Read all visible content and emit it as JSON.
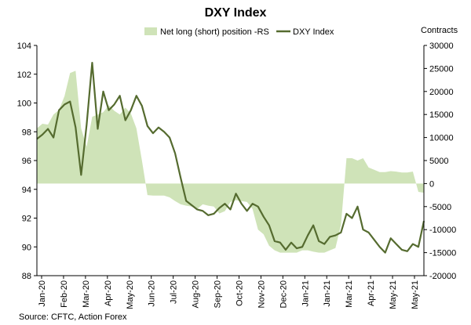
{
  "chart_data": {
    "type": "line",
    "title": "DXY Index",
    "source": "Source: CFTC, Action Forex",
    "y2_label": "Contracts",
    "ylim": [
      88,
      104
    ],
    "y_ticks": [
      88,
      90,
      92,
      94,
      96,
      98,
      100,
      102,
      104
    ],
    "y2lim": [
      -20000,
      30000
    ],
    "y2_ticks": [
      -20000,
      -15000,
      -10000,
      -5000,
      0,
      5000,
      10000,
      15000,
      20000,
      25000,
      30000
    ],
    "x_tick_labels": [
      "Jan-20",
      "Feb-20",
      "Mar-20",
      "Apr-20",
      "May-20",
      "Jun-20",
      "Jul-20",
      "Aug-20",
      "Sep-20",
      "Oct-20",
      "Nov-20",
      "Dec-20",
      "Jan-21",
      "Jan-21",
      "Mar-21",
      "Apr-21",
      "May-21",
      "May-21"
    ],
    "x_index_max": 70,
    "legend_position": "top-center",
    "series": [
      {
        "name": "Net long (short) position -RS",
        "axis": "right",
        "style": "area",
        "color": "#cfe3b8",
        "x": [
          0,
          1,
          2,
          3,
          4,
          5,
          6,
          7,
          8,
          9,
          10,
          11,
          12,
          13,
          14,
          15,
          16,
          17,
          18,
          19,
          20,
          21,
          22,
          23,
          24,
          25,
          26,
          27,
          28,
          29,
          30,
          31,
          32,
          33,
          34,
          35,
          36,
          37,
          38,
          39,
          40,
          41,
          42,
          43,
          44,
          45,
          46,
          47,
          48,
          49,
          50,
          51,
          52,
          53,
          54,
          55,
          56,
          57,
          58,
          59,
          60,
          61,
          62,
          63,
          64,
          65,
          66,
          67,
          68,
          69,
          70
        ],
        "values": [
          12000,
          13000,
          12800,
          15000,
          16000,
          19000,
          24000,
          24500,
          12000,
          8000,
          14500,
          15000,
          15500,
          17000,
          15800,
          15000,
          16500,
          15200,
          12000,
          5000,
          -2500,
          -2600,
          -2600,
          -2600,
          -3000,
          -3800,
          -4500,
          -4800,
          -5000,
          -5500,
          -4500,
          -4800,
          -5000,
          -6500,
          -6000,
          -4000,
          -3600,
          -3800,
          -4000,
          -5500,
          -10000,
          -11000,
          -13500,
          -14500,
          -15000,
          -15000,
          -15000,
          -15000,
          -14500,
          -14500,
          -14800,
          -15000,
          -15000,
          -14500,
          -14000,
          -9000,
          5500,
          5500,
          5000,
          5500,
          3500,
          3000,
          2500,
          2500,
          2700,
          2600,
          2400,
          2400,
          2600,
          -1800,
          -2000
        ]
      },
      {
        "name": "DXY Index",
        "axis": "left",
        "style": "line",
        "color": "#556b2f",
        "x": [
          0,
          1,
          2,
          3,
          4,
          5,
          6,
          7,
          8,
          9,
          10,
          11,
          12,
          13,
          14,
          15,
          16,
          17,
          18,
          19,
          20,
          21,
          22,
          23,
          24,
          25,
          26,
          27,
          28,
          29,
          30,
          31,
          32,
          33,
          34,
          35,
          36,
          37,
          38,
          39,
          40,
          41,
          42,
          43,
          44,
          45,
          46,
          47,
          48,
          49,
          50,
          51,
          52,
          53,
          54,
          55,
          56,
          57,
          58,
          59,
          60,
          61,
          62,
          63,
          64,
          65,
          66,
          67,
          68,
          69,
          70
        ],
        "values": [
          97.5,
          97.8,
          98.2,
          97.6,
          99.5,
          99.9,
          100.1,
          98.3,
          95.0,
          98.5,
          102.8,
          98.2,
          100.8,
          99.5,
          99.9,
          100.5,
          98.8,
          99.5,
          100.5,
          99.8,
          98.4,
          97.9,
          98.3,
          98.0,
          97.6,
          96.5,
          94.8,
          93.2,
          92.9,
          92.6,
          92.5,
          92.2,
          92.3,
          92.7,
          93.0,
          92.6,
          93.7,
          93.0,
          92.5,
          93.0,
          92.8,
          92.1,
          91.5,
          90.4,
          90.3,
          89.8,
          90.3,
          89.9,
          90.0,
          90.8,
          91.5,
          90.4,
          90.2,
          90.7,
          90.8,
          91.0,
          92.3,
          92.0,
          92.8,
          91.2,
          91.0,
          90.5,
          90.0,
          89.6,
          90.6,
          90.2,
          89.8,
          89.7,
          90.2,
          90.0,
          91.8
        ]
      }
    ]
  }
}
